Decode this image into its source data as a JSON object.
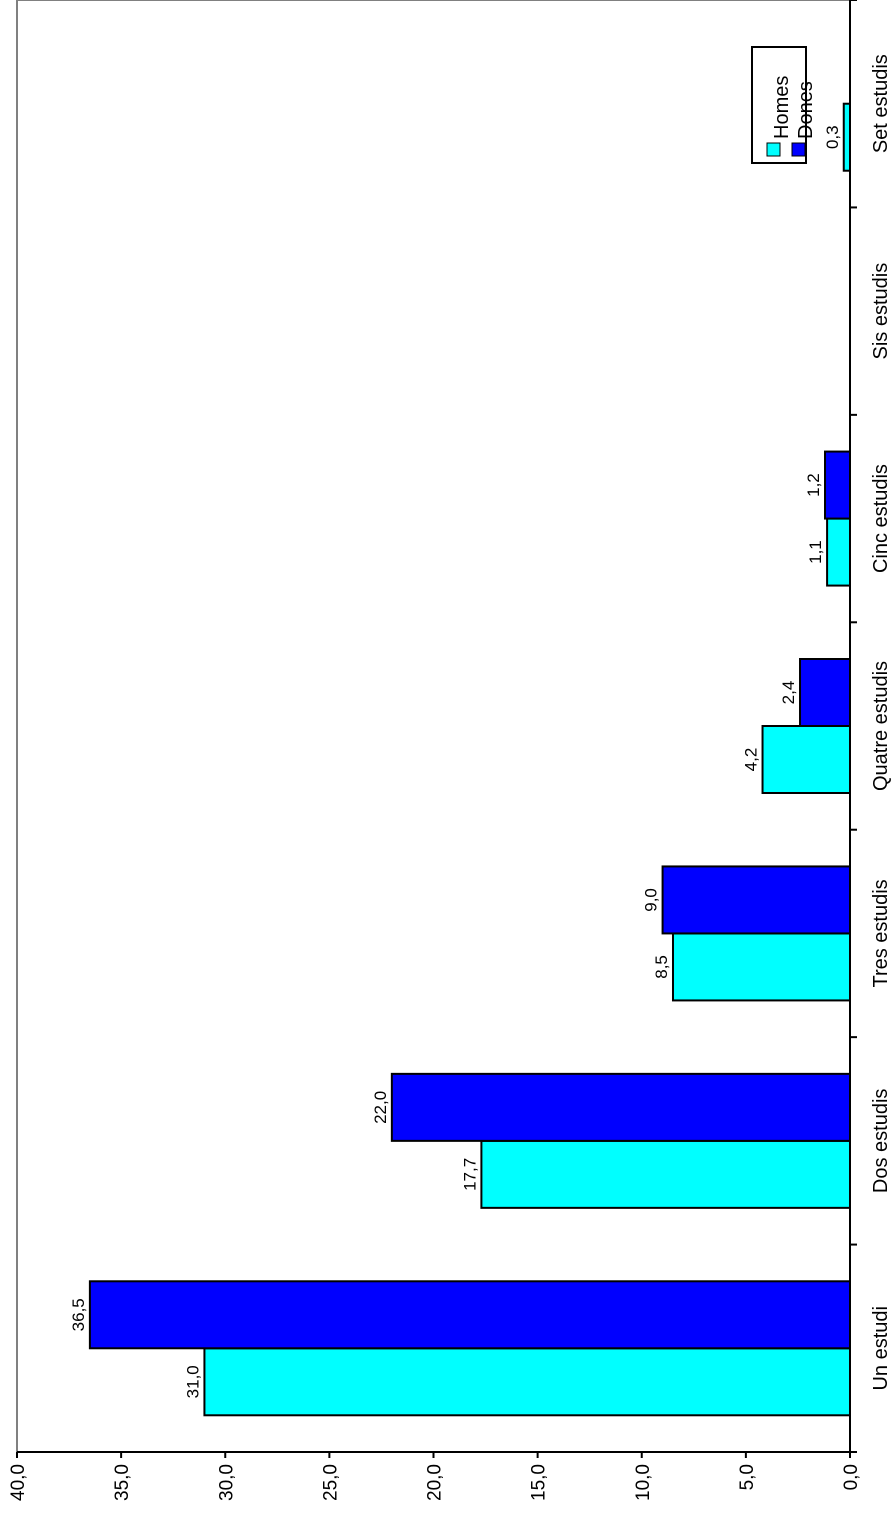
{
  "chart_data": {
    "type": "bar",
    "orientation": "horizontal",
    "categories": [
      "Un estudi",
      "Dos estudis",
      "Tres estudis",
      "Quatre estudis",
      "Cinc estudis",
      "Sis estudis",
      "Set estudis"
    ],
    "series": [
      {
        "name": "Homes",
        "color": "#00ffff",
        "values": [
          31.0,
          17.7,
          8.5,
          4.2,
          1.1,
          null,
          0.3
        ],
        "labels": [
          "31,0",
          "17,7",
          "8,5",
          "4,2",
          "1,1",
          "",
          "0,3"
        ]
      },
      {
        "name": "Dones",
        "color": "#0000ff",
        "values": [
          36.5,
          22.0,
          9.0,
          2.4,
          1.2,
          null,
          null
        ],
        "labels": [
          "36,5",
          "22,0",
          "9,0",
          "2,4",
          "1,2",
          "",
          ""
        ]
      }
    ],
    "value_axis": {
      "range": [
        0,
        40
      ],
      "ticks": [
        0,
        5,
        10,
        15,
        20,
        25,
        30,
        35,
        40
      ],
      "tick_labels": [
        "0,0",
        "5,0",
        "10,0",
        "15,0",
        "20,0",
        "25,0",
        "30,0",
        "35,0",
        "40,0"
      ]
    },
    "title": "",
    "xlabel": "",
    "ylabel": "",
    "grid": false,
    "legend": {
      "position": "top-right",
      "entries": [
        "Homes",
        "Dones"
      ]
    },
    "rotation": "chart rendered rotated 90 degrees counter-clockwise"
  }
}
